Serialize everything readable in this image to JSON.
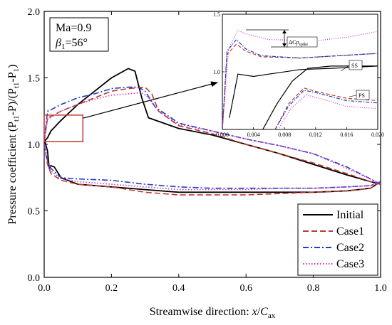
{
  "chart_data": {
    "type": "line",
    "xlabel": {
      "main": "Streamwise direction: ",
      "var": "x",
      "sep": "/",
      "c": "C",
      "sub": "ax"
    },
    "ylabel": {
      "text": "Pressure coefficient (P",
      "sub1": "t1",
      "mid": "-P)/(P",
      "sub2": "t1",
      "mid2": "-P",
      "sub3": "1",
      "end": ")"
    },
    "xlim": [
      0.0,
      1.0
    ],
    "ylim": [
      0.0,
      2.0
    ],
    "x_ticks": [
      "0.0",
      "0.2",
      "0.4",
      "0.6",
      "0.8",
      "1.0"
    ],
    "y_ticks": [
      "0.0",
      "0.5",
      "1.0",
      "1.5",
      "2.0"
    ],
    "annotation": {
      "ma": "Ma=0.9",
      "beta_sym": "β",
      "beta_sub": "1",
      "beta_val": "=56°"
    },
    "legend_position": "bottom-right",
    "series": [
      {
        "name": "Initial",
        "color": "#000000",
        "dash": "solid",
        "ss": [
          [
            0.0,
            1.02
          ],
          [
            0.01,
            1.05
          ],
          [
            0.02,
            1.1
          ],
          [
            0.05,
            1.18
          ],
          [
            0.1,
            1.3
          ],
          [
            0.15,
            1.4
          ],
          [
            0.2,
            1.5
          ],
          [
            0.25,
            1.57
          ],
          [
            0.27,
            1.55
          ],
          [
            0.29,
            1.35
          ],
          [
            0.31,
            1.2
          ],
          [
            0.4,
            1.12
          ],
          [
            0.5,
            1.07
          ],
          [
            0.6,
            1.0
          ],
          [
            0.7,
            0.93
          ],
          [
            0.8,
            0.85
          ],
          [
            0.9,
            0.77
          ],
          [
            0.97,
            0.72
          ],
          [
            1.0,
            0.7
          ]
        ],
        "ps": [
          [
            0.0,
            1.04
          ],
          [
            0.01,
            0.95
          ],
          [
            0.015,
            0.82
          ],
          [
            0.02,
            0.84
          ],
          [
            0.03,
            0.83
          ],
          [
            0.05,
            0.75
          ],
          [
            0.1,
            0.7
          ],
          [
            0.2,
            0.68
          ],
          [
            0.3,
            0.66
          ],
          [
            0.4,
            0.64
          ],
          [
            0.5,
            0.64
          ],
          [
            0.6,
            0.64
          ],
          [
            0.7,
            0.64
          ],
          [
            0.8,
            0.64
          ],
          [
            0.9,
            0.65
          ],
          [
            0.97,
            0.67
          ],
          [
            1.0,
            0.72
          ]
        ]
      },
      {
        "name": "Case1",
        "color": "#c0392b",
        "dash": "dashed",
        "ss": [
          [
            0.0,
            1.02
          ],
          [
            0.01,
            1.2
          ],
          [
            0.02,
            1.21
          ],
          [
            0.05,
            1.25
          ],
          [
            0.1,
            1.3
          ],
          [
            0.15,
            1.35
          ],
          [
            0.2,
            1.4
          ],
          [
            0.25,
            1.42
          ],
          [
            0.3,
            1.43
          ],
          [
            0.32,
            1.38
          ],
          [
            0.34,
            1.25
          ],
          [
            0.4,
            1.14
          ],
          [
            0.5,
            1.08
          ],
          [
            0.6,
            1.0
          ],
          [
            0.7,
            0.93
          ],
          [
            0.8,
            0.86
          ],
          [
            0.9,
            0.78
          ],
          [
            0.97,
            0.72
          ],
          [
            1.0,
            0.7
          ]
        ],
        "ps": [
          [
            0.0,
            1.0
          ],
          [
            0.01,
            0.85
          ],
          [
            0.02,
            0.78
          ],
          [
            0.05,
            0.73
          ],
          [
            0.1,
            0.7
          ],
          [
            0.2,
            0.68
          ],
          [
            0.3,
            0.64
          ],
          [
            0.4,
            0.62
          ],
          [
            0.5,
            0.62
          ],
          [
            0.6,
            0.62
          ],
          [
            0.7,
            0.63
          ],
          [
            0.8,
            0.64
          ],
          [
            0.9,
            0.65
          ],
          [
            0.97,
            0.67
          ],
          [
            1.0,
            0.72
          ]
        ]
      },
      {
        "name": "Case2",
        "color": "#1f3fbf",
        "dash": "dashdot",
        "ss": [
          [
            0.0,
            1.02
          ],
          [
            0.01,
            1.25
          ],
          [
            0.02,
            1.26
          ],
          [
            0.05,
            1.3
          ],
          [
            0.1,
            1.35
          ],
          [
            0.15,
            1.38
          ],
          [
            0.2,
            1.42
          ],
          [
            0.25,
            1.43
          ],
          [
            0.28,
            1.43
          ],
          [
            0.3,
            1.4
          ],
          [
            0.33,
            1.28
          ],
          [
            0.4,
            1.16
          ],
          [
            0.5,
            1.1
          ],
          [
            0.6,
            1.04
          ],
          [
            0.7,
            0.99
          ],
          [
            0.8,
            0.93
          ],
          [
            0.9,
            0.83
          ],
          [
            0.97,
            0.74
          ],
          [
            1.0,
            0.7
          ]
        ],
        "ps": [
          [
            0.0,
            1.0
          ],
          [
            0.01,
            0.88
          ],
          [
            0.02,
            0.82
          ],
          [
            0.05,
            0.75
          ],
          [
            0.1,
            0.74
          ],
          [
            0.2,
            0.73
          ],
          [
            0.3,
            0.7
          ],
          [
            0.4,
            0.68
          ],
          [
            0.5,
            0.67
          ],
          [
            0.6,
            0.67
          ],
          [
            0.7,
            0.67
          ],
          [
            0.8,
            0.67
          ],
          [
            0.9,
            0.68
          ],
          [
            0.97,
            0.69
          ],
          [
            1.0,
            0.72
          ]
        ]
      },
      {
        "name": "Case3",
        "color": "#cc33cc",
        "dash": "dotted",
        "ss": [
          [
            0.0,
            1.02
          ],
          [
            0.01,
            1.19
          ],
          [
            0.02,
            1.2
          ],
          [
            0.05,
            1.25
          ],
          [
            0.1,
            1.3
          ],
          [
            0.15,
            1.34
          ],
          [
            0.2,
            1.37
          ],
          [
            0.25,
            1.38
          ],
          [
            0.29,
            1.39
          ],
          [
            0.31,
            1.35
          ],
          [
            0.34,
            1.25
          ],
          [
            0.4,
            1.15
          ],
          [
            0.5,
            1.1
          ],
          [
            0.6,
            1.04
          ],
          [
            0.7,
            0.99
          ],
          [
            0.8,
            0.93
          ],
          [
            0.9,
            0.82
          ],
          [
            0.97,
            0.74
          ],
          [
            1.0,
            0.7
          ]
        ],
        "ps": [
          [
            0.0,
            1.0
          ],
          [
            0.01,
            0.86
          ],
          [
            0.02,
            0.8
          ],
          [
            0.05,
            0.74
          ],
          [
            0.1,
            0.72
          ],
          [
            0.2,
            0.7
          ],
          [
            0.3,
            0.68
          ],
          [
            0.4,
            0.66
          ],
          [
            0.5,
            0.66
          ],
          [
            0.6,
            0.66
          ],
          [
            0.7,
            0.67
          ],
          [
            0.8,
            0.67
          ],
          [
            0.9,
            0.68
          ],
          [
            0.97,
            0.69
          ],
          [
            1.0,
            0.72
          ]
        ]
      }
    ],
    "highlight_box": {
      "x": [
        0.0,
        0.115
      ],
      "y": [
        1.02,
        1.22
      ]
    },
    "inset": {
      "xlim": [
        0.0,
        0.02
      ],
      "ylim": [
        0.5,
        1.5
      ],
      "x_ticks": [
        "0.000",
        "0.004",
        "0.008",
        "0.012",
        "0.016",
        "0.020"
      ],
      "y_ticks": [
        "1.0",
        "1.5"
      ],
      "y_tick_values": [
        1.0,
        1.5
      ],
      "label_ss": "SS",
      "label_ps": "PS",
      "label_spike": {
        "sym": "ΔC",
        "italic": "p",
        "sub": "spike"
      },
      "spike_level": [
        1.36,
        1.29
      ],
      "series": [
        {
          "name": "Initial",
          "ss": [
            [
              0.0009,
              0.6
            ],
            [
              0.002,
              0.98
            ],
            [
              0.004,
              0.96
            ],
            [
              0.006,
              0.98
            ],
            [
              0.01,
              1.02
            ],
            [
              0.014,
              1.03
            ],
            [
              0.02,
              1.05
            ]
          ],
          "ps": [
            [
              0.0052,
              0.5
            ],
            [
              0.007,
              0.72
            ],
            [
              0.009,
              0.92
            ],
            [
              0.011,
              1.03
            ],
            [
              0.014,
              1.05
            ],
            [
              0.02,
              1.05
            ]
          ]
        },
        {
          "name": "Case1",
          "ss": [
            [
              0.0,
              0.5
            ],
            [
              0.0006,
              1.15
            ],
            [
              0.0018,
              1.24
            ],
            [
              0.003,
              1.18
            ],
            [
              0.005,
              1.13
            ],
            [
              0.01,
              1.12
            ],
            [
              0.015,
              1.14
            ],
            [
              0.02,
              1.16
            ]
          ],
          "ps": [
            [
              0.0068,
              0.5
            ],
            [
              0.0085,
              0.72
            ],
            [
              0.0105,
              0.86
            ],
            [
              0.012,
              0.83
            ],
            [
              0.016,
              0.77
            ],
            [
              0.02,
              0.75
            ]
          ]
        },
        {
          "name": "Case2",
          "ss": [
            [
              0.0,
              0.5
            ],
            [
              0.0006,
              1.18
            ],
            [
              0.0018,
              1.28
            ],
            [
              0.003,
              1.2
            ],
            [
              0.005,
              1.14
            ],
            [
              0.01,
              1.12
            ],
            [
              0.015,
              1.14
            ],
            [
              0.02,
              1.16
            ]
          ],
          "ps": [
            [
              0.0068,
              0.5
            ],
            [
              0.0085,
              0.7
            ],
            [
              0.0105,
              0.84
            ],
            [
              0.012,
              0.82
            ],
            [
              0.016,
              0.75
            ],
            [
              0.02,
              0.73
            ]
          ]
        },
        {
          "name": "Case3",
          "ss": [
            [
              0.0,
              0.5
            ],
            [
              0.0008,
              1.2
            ],
            [
              0.002,
              1.36
            ],
            [
              0.003,
              1.33
            ],
            [
              0.006,
              1.28
            ],
            [
              0.012,
              1.27
            ],
            [
              0.016,
              1.3
            ],
            [
              0.02,
              1.35
            ]
          ],
          "ps": [
            [
              0.0072,
              0.5
            ],
            [
              0.0088,
              0.68
            ],
            [
              0.0108,
              0.8
            ],
            [
              0.013,
              0.76
            ],
            [
              0.016,
              0.7
            ],
            [
              0.02,
              0.68
            ]
          ]
        }
      ]
    }
  }
}
